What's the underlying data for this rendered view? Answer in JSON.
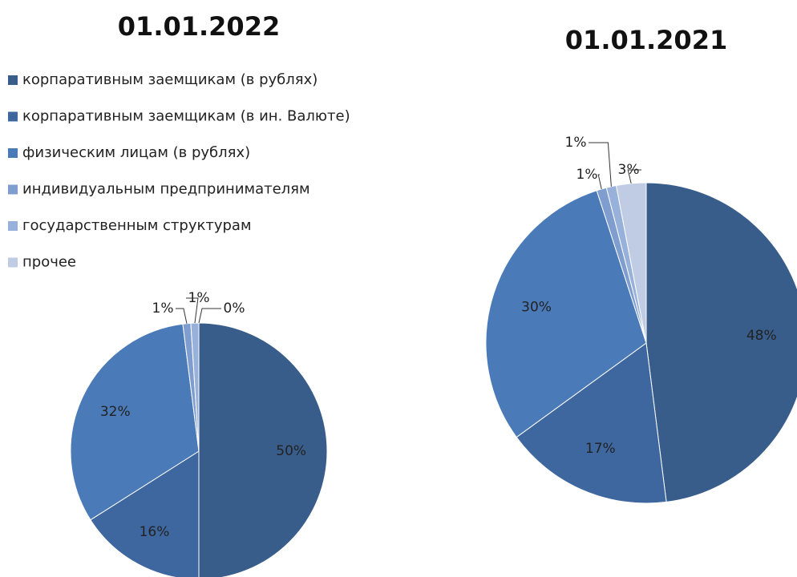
{
  "legend": {
    "items": [
      "корпаративным заемщикам (в рублях)",
      "корпаративным заемщикам (в ин. Валюте)",
      "физическим лицам (в рублях)",
      "индивидуальным предпринимателям",
      "государственным структурам",
      "прочее"
    ],
    "colors": [
      "#385d8a",
      "#3e67a0",
      "#4a7ab8",
      "#7f9dcf",
      "#98b1da",
      "#c0cce3"
    ]
  },
  "chart_data": [
    {
      "type": "pie",
      "title": "01.01.2022",
      "values": [
        50,
        16,
        32,
        1,
        1,
        0
      ],
      "value_labels": [
        "50%",
        "16%",
        "32%",
        "1%",
        "1%",
        "0%"
      ]
    },
    {
      "type": "pie",
      "title": "01.01.2021",
      "values": [
        48,
        17,
        30,
        1,
        1,
        3
      ],
      "value_labels": [
        "48%",
        "17%",
        "30%",
        "1%",
        "1%",
        "3%"
      ]
    }
  ]
}
